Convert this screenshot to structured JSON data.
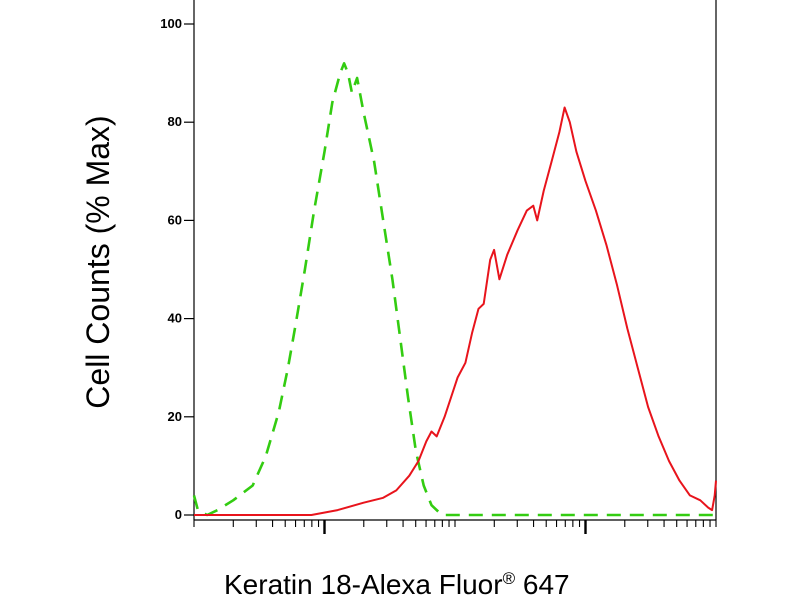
{
  "chart_data": {
    "type": "line",
    "xlabel": "Keratin 18-Alexa Fluor",
    "xlabel_mark": "®",
    "xlabel_suffix": " 647",
    "ylabel": "Cell Counts (% Max)",
    "ylim": [
      0,
      100
    ],
    "yticks": [
      "0",
      "20",
      "40",
      "60",
      "80",
      "100"
    ],
    "x_scale": "log (biexponential display)",
    "xlim_decades": [
      0,
      4
    ],
    "grid": false,
    "legend": "none",
    "series": [
      {
        "style": "dashed",
        "color": "#33cc11",
        "points": [
          [
            0.0,
            4
          ],
          [
            0.03,
            1
          ],
          [
            0.1,
            0
          ],
          [
            0.18,
            1
          ],
          [
            0.3,
            3
          ],
          [
            0.45,
            6
          ],
          [
            0.55,
            12
          ],
          [
            0.65,
            21
          ],
          [
            0.72,
            30
          ],
          [
            0.78,
            39
          ],
          [
            0.85,
            50
          ],
          [
            0.92,
            62
          ],
          [
            1.0,
            74
          ],
          [
            1.06,
            84
          ],
          [
            1.12,
            90
          ],
          [
            1.15,
            92
          ],
          [
            1.18,
            90
          ],
          [
            1.21,
            86
          ],
          [
            1.25,
            89
          ],
          [
            1.3,
            82
          ],
          [
            1.38,
            72
          ],
          [
            1.45,
            60
          ],
          [
            1.52,
            48
          ],
          [
            1.58,
            36
          ],
          [
            1.64,
            24
          ],
          [
            1.7,
            13
          ],
          [
            1.76,
            6
          ],
          [
            1.82,
            2
          ],
          [
            1.9,
            0
          ],
          [
            2.1,
            0
          ],
          [
            2.6,
            0
          ],
          [
            3.1,
            0
          ],
          [
            3.6,
            0
          ],
          [
            4.0,
            0
          ]
        ]
      },
      {
        "style": "solid",
        "color": "#e8141c",
        "points": [
          [
            0.0,
            0
          ],
          [
            0.6,
            0
          ],
          [
            0.9,
            0
          ],
          [
            1.1,
            1
          ],
          [
            1.3,
            2.5
          ],
          [
            1.45,
            3.5
          ],
          [
            1.55,
            5
          ],
          [
            1.65,
            8
          ],
          [
            1.72,
            11
          ],
          [
            1.78,
            15
          ],
          [
            1.82,
            17
          ],
          [
            1.86,
            16
          ],
          [
            1.92,
            20
          ],
          [
            1.97,
            24
          ],
          [
            2.02,
            28
          ],
          [
            2.08,
            31
          ],
          [
            2.13,
            37
          ],
          [
            2.18,
            42
          ],
          [
            2.22,
            43
          ],
          [
            2.27,
            52
          ],
          [
            2.3,
            54
          ],
          [
            2.34,
            48
          ],
          [
            2.4,
            53
          ],
          [
            2.48,
            58
          ],
          [
            2.55,
            62
          ],
          [
            2.6,
            63
          ],
          [
            2.63,
            60
          ],
          [
            2.68,
            66
          ],
          [
            2.74,
            72
          ],
          [
            2.8,
            78
          ],
          [
            2.84,
            83
          ],
          [
            2.88,
            80
          ],
          [
            2.93,
            74
          ],
          [
            3.0,
            68
          ],
          [
            3.08,
            62
          ],
          [
            3.16,
            55
          ],
          [
            3.24,
            47
          ],
          [
            3.32,
            38
          ],
          [
            3.4,
            30
          ],
          [
            3.48,
            22
          ],
          [
            3.56,
            16
          ],
          [
            3.64,
            11
          ],
          [
            3.72,
            7
          ],
          [
            3.8,
            4
          ],
          [
            3.88,
            3
          ],
          [
            3.94,
            1.5
          ],
          [
            3.97,
            1
          ],
          [
            3.99,
            4
          ],
          [
            4.0,
            7
          ]
        ]
      }
    ]
  }
}
